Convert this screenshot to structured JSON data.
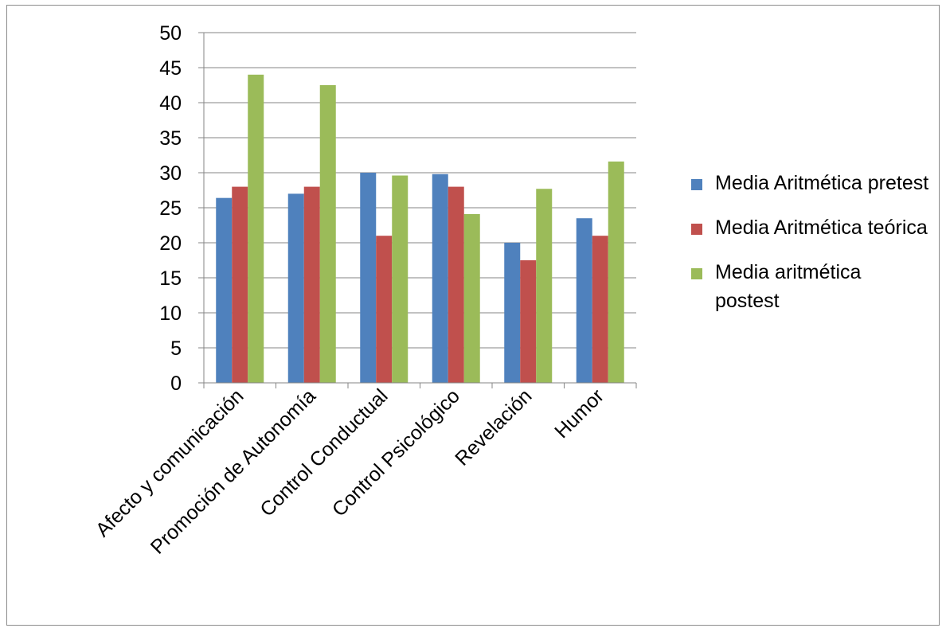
{
  "chart_data": {
    "type": "bar",
    "title": "",
    "xlabel": "",
    "ylabel": "",
    "ylim": [
      0,
      50
    ],
    "yticks": [
      0,
      5,
      10,
      15,
      20,
      25,
      30,
      35,
      40,
      45,
      50
    ],
    "grid": true,
    "legend_position": "right",
    "categories": [
      "Afecto y comunicación",
      "Promoción de Autonomía",
      "Control Conductual",
      "Control Psicológico",
      "Revelación",
      "Humor"
    ],
    "series": [
      {
        "name": "Media Aritmética pretest",
        "color": "#4f81bd",
        "values": [
          26.4,
          27.0,
          30.0,
          29.8,
          20.0,
          23.5
        ]
      },
      {
        "name": "Media Aritmética teórica",
        "color": "#c0504d",
        "values": [
          28.0,
          28.0,
          21.0,
          28.0,
          17.5,
          21.0
        ]
      },
      {
        "name": "Media aritmética postest",
        "color": "#9bbb59",
        "values": [
          44.0,
          42.5,
          29.6,
          24.1,
          27.7,
          31.6
        ]
      }
    ]
  }
}
